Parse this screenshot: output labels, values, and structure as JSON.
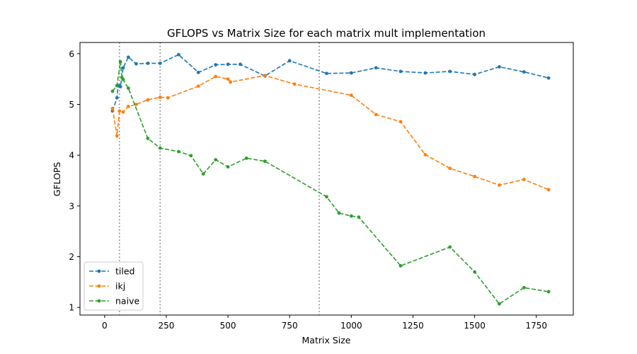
{
  "chart_data": {
    "type": "line",
    "title": "GFLOPS vs Matrix Size for each matrix mult implementation",
    "xlabel": "Matrix Size",
    "ylabel": "GFLOPS",
    "xlim": [
      -100,
      1900
    ],
    "ylim": [
      0.85,
      6.22
    ],
    "xticks": [
      0,
      250,
      500,
      750,
      1000,
      1250,
      1500,
      1750
    ],
    "yticks": [
      1,
      2,
      3,
      4,
      5,
      6
    ],
    "grid": false,
    "legend_position": "lower-left",
    "vlines": [
      60,
      225,
      870
    ],
    "series": [
      {
        "name": "tiled",
        "color": "#1f77b4",
        "points": [
          [
            32,
            4.87
          ],
          [
            50,
            5.13
          ],
          [
            55,
            5.37
          ],
          [
            60,
            5.36
          ],
          [
            64,
            5.35
          ],
          [
            75,
            5.72
          ],
          [
            96,
            5.93
          ],
          [
            128,
            5.8
          ],
          [
            175,
            5.81
          ],
          [
            225,
            5.81
          ],
          [
            300,
            5.98
          ],
          [
            380,
            5.63
          ],
          [
            450,
            5.78
          ],
          [
            500,
            5.79
          ],
          [
            550,
            5.79
          ],
          [
            650,
            5.56
          ],
          [
            750,
            5.86
          ],
          [
            900,
            5.61
          ],
          [
            1000,
            5.62
          ],
          [
            1100,
            5.72
          ],
          [
            1200,
            5.65
          ],
          [
            1300,
            5.62
          ],
          [
            1400,
            5.65
          ],
          [
            1500,
            5.59
          ],
          [
            1600,
            5.74
          ],
          [
            1700,
            5.64
          ],
          [
            1800,
            5.52
          ]
        ]
      },
      {
        "name": "ikj",
        "color": "#ff7f0e",
        "points": [
          [
            32,
            4.92
          ],
          [
            50,
            4.38
          ],
          [
            60,
            4.87
          ],
          [
            75,
            4.85
          ],
          [
            96,
            4.96
          ],
          [
            128,
            5.0
          ],
          [
            175,
            5.09
          ],
          [
            225,
            5.14
          ],
          [
            256,
            5.13
          ],
          [
            380,
            5.36
          ],
          [
            450,
            5.55
          ],
          [
            500,
            5.5
          ],
          [
            510,
            5.44
          ],
          [
            650,
            5.57
          ],
          [
            770,
            5.4
          ],
          [
            1000,
            5.18
          ],
          [
            1100,
            4.8
          ],
          [
            1200,
            4.66
          ],
          [
            1300,
            4.01
          ],
          [
            1400,
            3.74
          ],
          [
            1500,
            3.58
          ],
          [
            1600,
            3.41
          ],
          [
            1700,
            3.52
          ],
          [
            1800,
            3.32
          ]
        ]
      },
      {
        "name": "naive",
        "color": "#2ca02c",
        "points": [
          [
            32,
            5.26
          ],
          [
            50,
            5.37
          ],
          [
            64,
            5.84
          ],
          [
            70,
            5.53
          ],
          [
            75,
            5.49
          ],
          [
            96,
            5.32
          ],
          [
            175,
            4.33
          ],
          [
            225,
            4.14
          ],
          [
            300,
            4.07
          ],
          [
            350,
            3.99
          ],
          [
            400,
            3.63
          ],
          [
            450,
            3.91
          ],
          [
            500,
            3.77
          ],
          [
            575,
            3.94
          ],
          [
            650,
            3.88
          ],
          [
            900,
            3.18
          ],
          [
            950,
            2.86
          ],
          [
            1000,
            2.8
          ],
          [
            1030,
            2.78
          ],
          [
            1200,
            1.82
          ],
          [
            1400,
            2.19
          ],
          [
            1500,
            1.7
          ],
          [
            1600,
            1.07
          ],
          [
            1700,
            1.39
          ],
          [
            1800,
            1.31
          ]
        ]
      }
    ]
  }
}
